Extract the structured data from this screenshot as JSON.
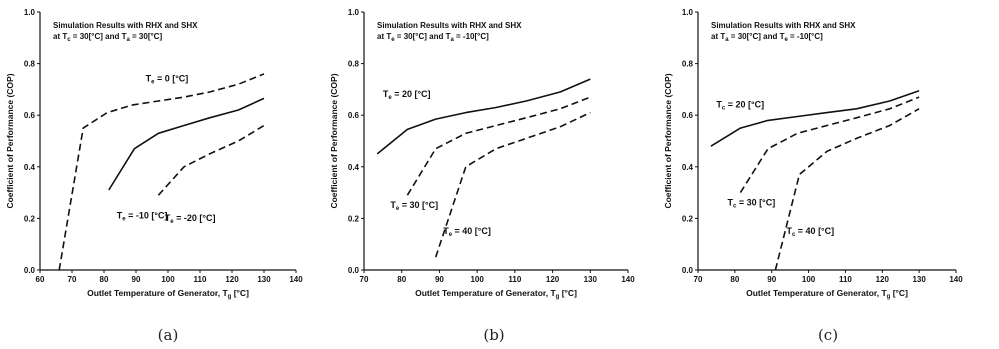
{
  "figure": {
    "captions": [
      "(a)",
      "(b)",
      "(c)"
    ]
  },
  "chart_data": [
    {
      "type": "line",
      "title": [
        "Simulation Results with RHX and SHX",
        "at T",
        "c",
        " = 30[°C] and T",
        "a",
        " = 30[°C]"
      ],
      "xlabel": [
        "Outlet Temperature of Generator, T",
        "g",
        " [°C]"
      ],
      "ylabel": "Coefficient of Performance (COP)",
      "xlim": [
        60,
        140
      ],
      "ylim": [
        0.0,
        1.0
      ],
      "xticks": [
        "60",
        "70",
        "80",
        "90",
        "100",
        "110",
        "120",
        "130",
        "140"
      ],
      "yticks": [
        "0.0",
        "0.2",
        "0.4",
        "0.6",
        "0.8",
        "1.0"
      ],
      "series": [
        {
          "name": [
            "T",
            "e",
            " = 0 [°C]"
          ],
          "dash": "dashed",
          "x": [
            66,
            73.5,
            81,
            89,
            97,
            105,
            113,
            122,
            130
          ],
          "y": [
            0.0,
            0.55,
            0.61,
            0.64,
            0.655,
            0.67,
            0.69,
            0.72,
            0.76
          ]
        },
        {
          "name": [
            "T",
            "e",
            " = -10 [°C]"
          ],
          "dash": "solid",
          "x": [
            81.5,
            89.5,
            97,
            105,
            113,
            122,
            130
          ],
          "y": [
            0.31,
            0.47,
            0.53,
            0.56,
            0.59,
            0.62,
            0.665
          ]
        },
        {
          "name": [
            "T",
            "e",
            " = -20 [°C]"
          ],
          "dash": "dashed",
          "x": [
            97,
            105,
            113,
            122,
            130
          ],
          "y": [
            0.29,
            0.4,
            0.45,
            0.5,
            0.56
          ]
        }
      ]
    },
    {
      "type": "line",
      "title": [
        "Simulation Results with RHX and SHX",
        "at T",
        "e",
        " = 30[°C] and T",
        "a",
        " = -10[°C]"
      ],
      "xlabel": [
        "Outlet Temperature of Generator, T",
        "g",
        " [°C]"
      ],
      "ylabel": "Coefficient of Performance (COP)",
      "xlim": [
        70,
        140
      ],
      "ylim": [
        0.0,
        1.0
      ],
      "xticks": [
        "70",
        "80",
        "90",
        "100",
        "110",
        "120",
        "130",
        "140"
      ],
      "yticks": [
        "0.0",
        "0.2",
        "0.4",
        "0.6",
        "0.8",
        "1.0"
      ],
      "series": [
        {
          "name": [
            "T",
            "e",
            " = 20 [°C]"
          ],
          "dash": "solid",
          "x": [
            73.5,
            81.5,
            89,
            97,
            105,
            113,
            122,
            130
          ],
          "y": [
            0.45,
            0.545,
            0.585,
            0.61,
            0.63,
            0.655,
            0.69,
            0.74
          ]
        },
        {
          "name": [
            "T",
            "e",
            " = 30 [°C]"
          ],
          "dash": "dashed",
          "x": [
            81.5,
            89,
            97,
            105,
            113,
            122,
            130
          ],
          "y": [
            0.29,
            0.47,
            0.53,
            0.56,
            0.59,
            0.625,
            0.67
          ]
        },
        {
          "name": [
            "T",
            "e",
            " = 40 [°C]"
          ],
          "dash": "dashed",
          "x": [
            89,
            97,
            105,
            113,
            122,
            130
          ],
          "y": [
            0.05,
            0.4,
            0.47,
            0.51,
            0.555,
            0.61
          ]
        }
      ]
    },
    {
      "type": "line",
      "title": [
        "Simulation Results with RHX and SHX",
        "at T",
        "a",
        " = 30[°C] and T",
        "e",
        " = -10[°C]"
      ],
      "xlabel": [
        "Outlet Temperature of Generator, T",
        "g",
        " [°C]"
      ],
      "ylabel": "Coefficient of Performance (COP)",
      "xlim": [
        70,
        140
      ],
      "ylim": [
        0.0,
        1.0
      ],
      "xticks": [
        "70",
        "80",
        "90",
        "100",
        "110",
        "120",
        "130",
        "140"
      ],
      "yticks": [
        "0.0",
        "0.2",
        "0.4",
        "0.6",
        "0.8",
        "1.0"
      ],
      "series": [
        {
          "name": [
            "T",
            "c",
            " = 20 [°C]"
          ],
          "dash": "solid",
          "x": [
            73.5,
            81.5,
            89,
            97,
            105,
            113,
            122,
            130
          ],
          "y": [
            0.48,
            0.55,
            0.58,
            0.595,
            0.61,
            0.625,
            0.655,
            0.695
          ]
        },
        {
          "name": [
            "T",
            "c",
            " = 30 [°C]"
          ],
          "dash": "dashed",
          "x": [
            81.5,
            89,
            97,
            105,
            113,
            122,
            130
          ],
          "y": [
            0.3,
            0.47,
            0.53,
            0.56,
            0.59,
            0.625,
            0.67
          ]
        },
        {
          "name": [
            "T",
            "c",
            " = 40 [°C]"
          ],
          "dash": "dashed",
          "x": [
            91,
            97.5,
            105,
            113,
            122,
            130
          ],
          "y": [
            0.0,
            0.37,
            0.46,
            0.51,
            0.56,
            0.625
          ]
        }
      ]
    }
  ]
}
